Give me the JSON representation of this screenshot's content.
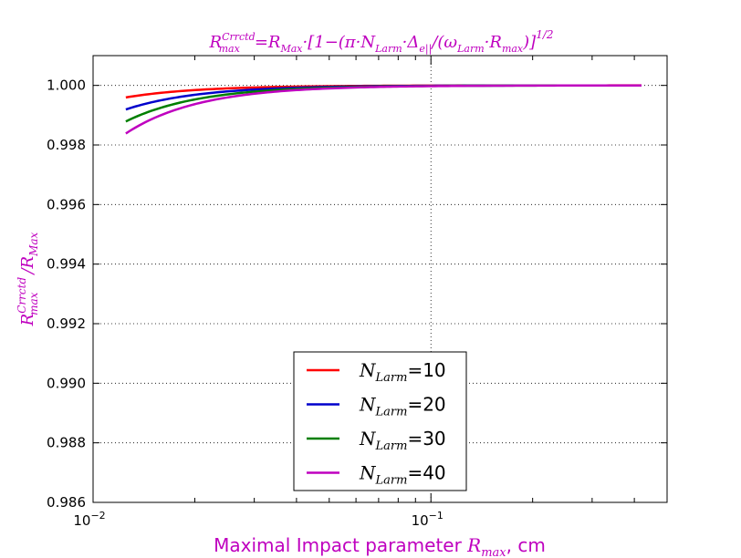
{
  "chart_data": {
    "type": "line",
    "title": {
      "lhs": "R",
      "lhs_sup": "Crrctd",
      "lhs_sub": "max",
      "rhs": "=R",
      "rhs_sub": "Max",
      "formula": "·[1−(π·N",
      "formula_sub1": "Larm",
      "formula_mid": "·Δ",
      "formula_sub2": "e||",
      "formula_mid2": "/(ω",
      "formula_sub3": "Larm",
      "formula_mid3": "·R",
      "formula_sub4": "max",
      "formula_end": ")]",
      "formula_sup": "1/2"
    },
    "xlabel": {
      "text": "Maximal Impact parameter ",
      "var": "R",
      "var_sub": "max",
      "unit": ", cm"
    },
    "ylabel": {
      "num": "R",
      "num_sup": "Crrctd",
      "num_sub": "max",
      "sep": "/",
      "den": "R",
      "den_sub": "Max"
    },
    "x_scale": "log",
    "xlim": [
      0.01,
      0.5
    ],
    "ylim": [
      0.986,
      1.001
    ],
    "x_ticks": [
      {
        "value": 0.01,
        "base": "10",
        "exp": "−2"
      },
      {
        "value": 0.1,
        "base": "10",
        "exp": "−1"
      }
    ],
    "y_ticks": [
      {
        "value": 0.986,
        "label": "0.986"
      },
      {
        "value": 0.988,
        "label": "0.988"
      },
      {
        "value": 0.99,
        "label": "0.990"
      },
      {
        "value": 0.992,
        "label": "0.992"
      },
      {
        "value": 0.994,
        "label": "0.994"
      },
      {
        "value": 0.996,
        "label": "0.996"
      },
      {
        "value": 0.998,
        "label": "0.998"
      },
      {
        "value": 1.0,
        "label": "1.000"
      }
    ],
    "grid": true,
    "legend_placement": "lower-center",
    "x_range": [
      0.0125,
      0.42
    ],
    "series": [
      {
        "name_var": "N",
        "name_sub": "Larm",
        "name_eq": "=10",
        "N": 10,
        "color": "#ff0000"
      },
      {
        "name_var": "N",
        "name_sub": "Larm",
        "name_eq": "=20",
        "N": 20,
        "color": "#0000cc"
      },
      {
        "name_var": "N",
        "name_sub": "Larm",
        "name_eq": "=30",
        "N": 30,
        "color": "#007f00"
      },
      {
        "name_var": "N",
        "name_sub": "Larm",
        "name_eq": "=40",
        "N": 40,
        "color": "#bf00bf"
      }
    ],
    "model": {
      "formula": "y = sqrt(1 - N * k / x^2)",
      "k": 1.26e-08
    }
  }
}
